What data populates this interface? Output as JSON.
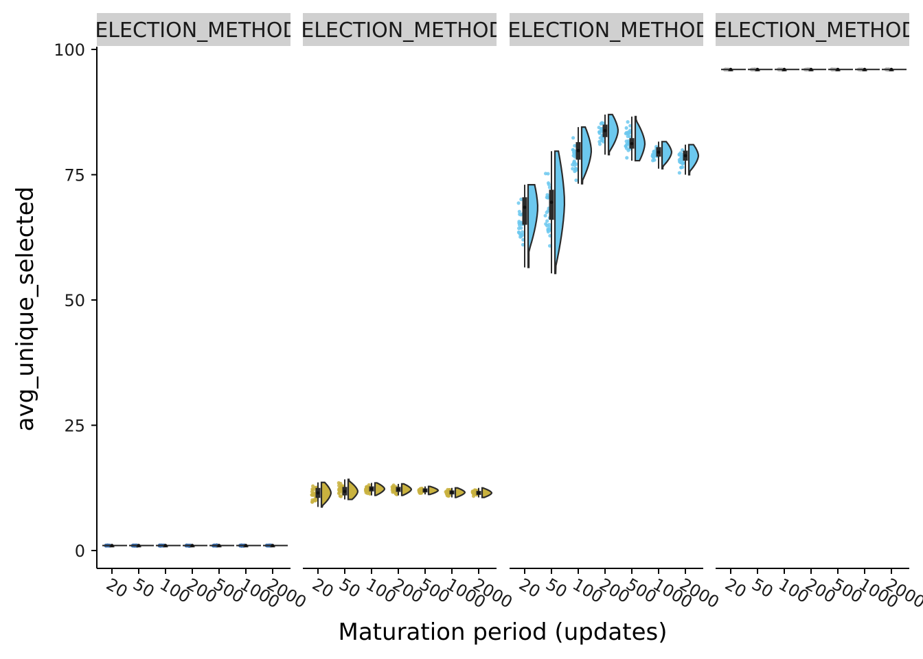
{
  "chart_data": {
    "type": "violin",
    "xlabel": "Maturation period (updates)",
    "ylabel": "avg_unique_selected",
    "ylim": [
      0,
      100
    ],
    "yticks": [
      0,
      25,
      50,
      75,
      100
    ],
    "categories": [
      "20",
      "50",
      "100",
      "200",
      "500",
      "1000",
      "2000"
    ],
    "panels": [
      {
        "strip_label": "SELECTION_METHOD: ",
        "color": "#3a6fb0",
        "series": [
          {
            "x": "20",
            "median": 1.0,
            "min": 0.9,
            "max": 1.1,
            "q1": 0.95,
            "q3": 1.05
          },
          {
            "x": "50",
            "median": 1.0,
            "min": 0.9,
            "max": 1.1,
            "q1": 0.95,
            "q3": 1.05
          },
          {
            "x": "100",
            "median": 1.0,
            "min": 0.9,
            "max": 1.1,
            "q1": 0.95,
            "q3": 1.05
          },
          {
            "x": "200",
            "median": 1.0,
            "min": 0.9,
            "max": 1.1,
            "q1": 0.95,
            "q3": 1.05
          },
          {
            "x": "500",
            "median": 1.0,
            "min": 0.9,
            "max": 1.1,
            "q1": 0.95,
            "q3": 1.05
          },
          {
            "x": "1000",
            "median": 1.0,
            "min": 0.9,
            "max": 1.1,
            "q1": 0.95,
            "q3": 1.05
          },
          {
            "x": "2000",
            "median": 1.0,
            "min": 0.9,
            "max": 1.1,
            "q1": 0.95,
            "q3": 1.05
          }
        ]
      },
      {
        "strip_label": "SELECTION_METHOD: ",
        "color": "#c9b23f",
        "series": [
          {
            "x": "20",
            "median": 11.5,
            "min": 8.7,
            "max": 13.6,
            "q1": 10.5,
            "q3": 12.5
          },
          {
            "x": "50",
            "median": 11.8,
            "min": 10.2,
            "max": 14.2,
            "q1": 11.0,
            "q3": 12.7
          },
          {
            "x": "100",
            "median": 12.3,
            "min": 11.0,
            "max": 13.5,
            "q1": 11.8,
            "q3": 12.8
          },
          {
            "x": "200",
            "median": 12.2,
            "min": 11.0,
            "max": 13.3,
            "q1": 11.7,
            "q3": 12.7
          },
          {
            "x": "500",
            "median": 12.0,
            "min": 11.2,
            "max": 12.8,
            "q1": 11.6,
            "q3": 12.4
          },
          {
            "x": "1000",
            "median": 11.6,
            "min": 10.6,
            "max": 12.5,
            "q1": 11.2,
            "q3": 12.0
          },
          {
            "x": "2000",
            "median": 11.5,
            "min": 10.6,
            "max": 12.5,
            "q1": 11.1,
            "q3": 11.9
          }
        ]
      },
      {
        "strip_label": "SELECTION_METHOD: ",
        "color": "#6cc8ee",
        "series": [
          {
            "x": "20",
            "median": 68.5,
            "min": 56.5,
            "max": 73.0,
            "q1": 65.0,
            "q3": 70.5
          },
          {
            "x": "50",
            "median": 69.5,
            "min": 55.3,
            "max": 79.7,
            "q1": 66.0,
            "q3": 72.0
          },
          {
            "x": "100",
            "median": 79.8,
            "min": 73.2,
            "max": 84.5,
            "q1": 78.0,
            "q3": 81.5
          },
          {
            "x": "200",
            "median": 83.8,
            "min": 79.0,
            "max": 87.0,
            "q1": 82.5,
            "q3": 85.0
          },
          {
            "x": "500",
            "median": 81.2,
            "min": 77.8,
            "max": 86.6,
            "q1": 80.2,
            "q3": 82.3
          },
          {
            "x": "1000",
            "median": 79.5,
            "min": 76.2,
            "max": 81.6,
            "q1": 78.6,
            "q3": 80.5
          },
          {
            "x": "2000",
            "median": 78.8,
            "min": 75.0,
            "max": 81.0,
            "q1": 77.8,
            "q3": 79.8
          }
        ]
      },
      {
        "strip_label": "SELECTION_METHOD: ",
        "color": "#b8b8b8",
        "series": [
          {
            "x": "20",
            "median": 96.0,
            "min": 95.9,
            "max": 96.1,
            "q1": 95.95,
            "q3": 96.05
          },
          {
            "x": "50",
            "median": 96.0,
            "min": 95.9,
            "max": 96.1,
            "q1": 95.95,
            "q3": 96.05
          },
          {
            "x": "100",
            "median": 96.0,
            "min": 95.9,
            "max": 96.1,
            "q1": 95.95,
            "q3": 96.05
          },
          {
            "x": "200",
            "median": 96.0,
            "min": 95.9,
            "max": 96.1,
            "q1": 95.95,
            "q3": 96.05
          },
          {
            "x": "500",
            "median": 96.0,
            "min": 95.9,
            "max": 96.1,
            "q1": 95.95,
            "q3": 96.05
          },
          {
            "x": "1000",
            "median": 96.0,
            "min": 95.9,
            "max": 96.1,
            "q1": 95.95,
            "q3": 96.05
          },
          {
            "x": "2000",
            "median": 96.0,
            "min": 95.9,
            "max": 96.1,
            "q1": 95.95,
            "q3": 96.05
          }
        ]
      }
    ]
  }
}
